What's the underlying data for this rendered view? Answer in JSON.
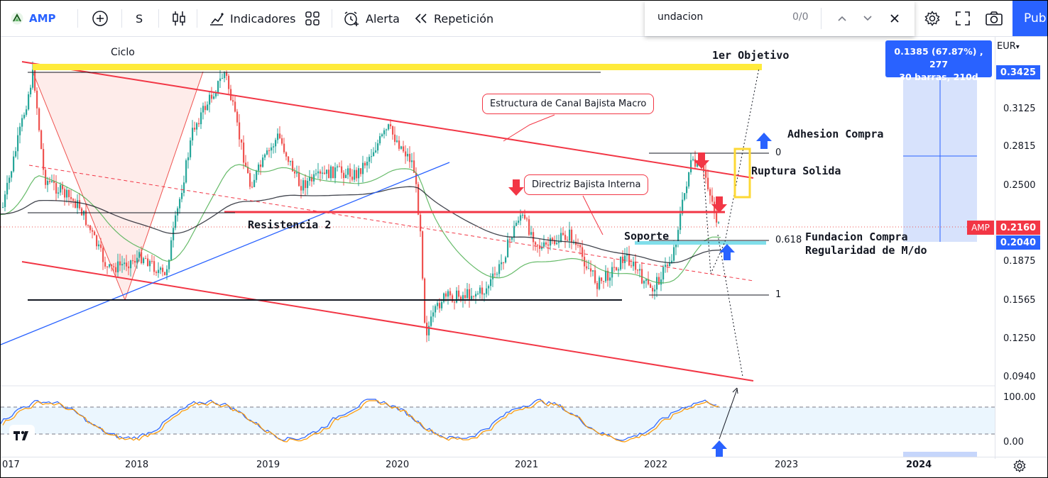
{
  "toolbar": {
    "symbol": "AMP",
    "interval": "S",
    "indicators_label": "Indicadores",
    "alert_label": "Alerta",
    "replay_label": "Repetición",
    "publish_label": "Pub"
  },
  "search": {
    "query": "undacion",
    "count": "0/0"
  },
  "measure": {
    "line1": "0.1385 (67.87%) , 277",
    "line2": "30 barras, 210d"
  },
  "price_scale": {
    "currency": "EUR",
    "ticks": [
      "0.3125",
      "0.2815",
      "0.2500",
      "0.1875",
      "0.1565",
      "0.1250",
      "0.0940"
    ],
    "measure_price": "0.3425",
    "measure_low": "0.2040",
    "last_symbol": "AMP",
    "last_price": "0.2160"
  },
  "oscillator_scale": {
    "ticks": [
      "100.00",
      "0.00"
    ]
  },
  "time_axis": {
    "labels": [
      "017",
      "2018",
      "2019",
      "2020",
      "2021",
      "2022",
      "2023",
      "2024"
    ]
  },
  "annotations": {
    "ciclo": "Ciclo",
    "objetivo": "1er Objetivo",
    "canal": "Estructura de Canal Bajista Macro",
    "adhesion": "Adhesion Compra",
    "ruptura": "Ruptura Solida",
    "directriz": "Directriz Bajista Interna",
    "resistencia": "Resistencia 2",
    "soporte": "Soporte",
    "fundacion": "Fundacion Compra",
    "regularidad": "Regularidad de M/do",
    "fib_0": "0",
    "fib_618": "0.618",
    "fib_1": "1"
  },
  "colors": {
    "up": "#26a69a",
    "down": "#ef5350",
    "channel": "#f23645",
    "accent": "#2962ff",
    "target": "#ffeb3b"
  }
}
